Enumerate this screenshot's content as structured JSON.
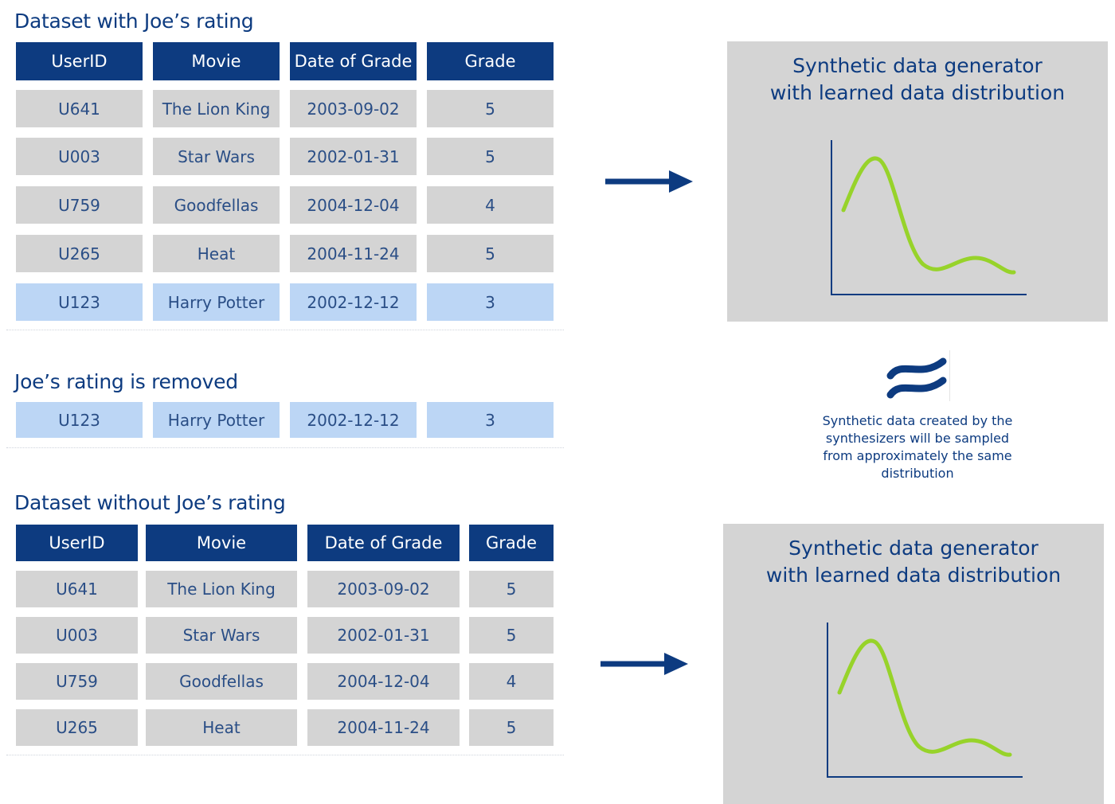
{
  "sections": {
    "with_joe": {
      "heading": "Dataset with Joe’s rating",
      "columns": [
        "UserID",
        "Movie",
        "Date of Grade",
        "Grade"
      ],
      "rows": [
        [
          "U641",
          "The Lion King",
          "2003-09-02",
          "5"
        ],
        [
          "U003",
          "Star Wars",
          "2002-01-31",
          "5"
        ],
        [
          "U759",
          "Goodfellas",
          "2004-12-04",
          "4"
        ],
        [
          "U265",
          "Heat",
          "2004-11-24",
          "5"
        ],
        [
          "U123",
          "Harry Potter",
          "2002-12-12",
          "3"
        ]
      ],
      "highlighted_row": 4
    },
    "removed": {
      "heading": "Joe’s rating is removed",
      "row": [
        "U123",
        "Harry Potter",
        "2002-12-12",
        "3"
      ]
    },
    "without_joe": {
      "heading": "Dataset without Joe’s rating",
      "columns": [
        "UserID",
        "Movie",
        "Date of Grade",
        "Grade"
      ],
      "rows": [
        [
          "U641",
          "The Lion King",
          "2003-09-02",
          "5"
        ],
        [
          "U003",
          "Star Wars",
          "2002-01-31",
          "5"
        ],
        [
          "U759",
          "Goodfellas",
          "2004-12-04",
          "4"
        ],
        [
          "U265",
          "Heat",
          "2004-11-24",
          "5"
        ]
      ]
    }
  },
  "generators": [
    {
      "title_line1": "Synthetic data generator",
      "title_line2": "with learned data distribution"
    },
    {
      "title_line1": "Synthetic data generator",
      "title_line2": "with learned data distribution"
    }
  ],
  "approx_symbol": "approximately-equal-icon",
  "note_lines": [
    "Synthetic data created by the",
    "synthesizers will be sampled",
    "from approximately the same",
    "distribution"
  ],
  "colors": {
    "brand_navy": "#0d3b80",
    "cell_gray": "#d4d4d4",
    "highlight_blue": "#bcd6f5",
    "curve_green": "#97d32a",
    "panel_gray": "#d4d4d4"
  }
}
